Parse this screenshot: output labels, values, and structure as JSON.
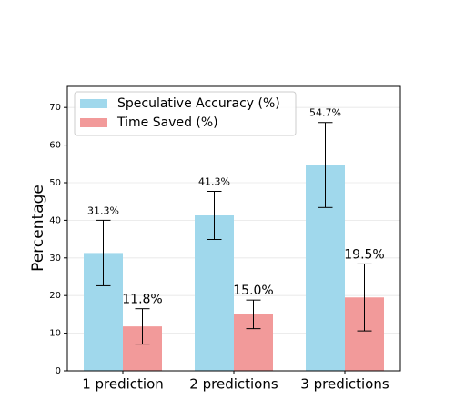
{
  "chart_data": {
    "type": "bar",
    "y_label": "Percentage",
    "categories": [
      "1 prediction",
      "2 predictions",
      "3 predictions"
    ],
    "series": [
      {
        "name": "Speculative Accuracy (%)",
        "color": "#a0d8ec",
        "values": [
          31.3,
          41.3,
          54.7
        ],
        "errors": [
          8.7,
          6.4,
          11.3
        ],
        "value_labels": [
          "31.3%",
          "41.3%",
          "54.7%"
        ]
      },
      {
        "name": "Time Saved (%)",
        "color": "#f29a9a",
        "values": [
          11.8,
          15.0,
          19.5
        ],
        "errors": [
          4.7,
          3.8,
          8.9
        ],
        "value_labels": [
          "11.8%",
          "15.0%",
          "19.5%"
        ]
      }
    ],
    "ylim": [
      0,
      75.6
    ],
    "yticks": [
      0,
      10,
      20,
      30,
      40,
      50,
      60,
      70
    ],
    "grid": true,
    "legend": "upper left"
  }
}
